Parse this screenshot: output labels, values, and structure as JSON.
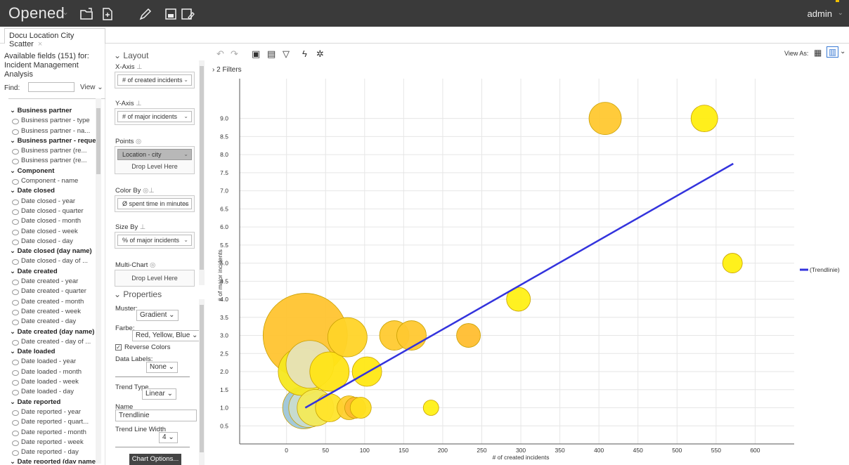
{
  "topbar": {
    "title": "Opened",
    "user": "admin",
    "icons": [
      "open-folder-icon",
      "new-report-icon",
      "edit-icon",
      "save-icon",
      "save-as-icon"
    ]
  },
  "tab": {
    "label": "Docu Location City Scatter",
    "close": "×"
  },
  "fields": {
    "header": "Available fields (151) for: Incident Management Analysis",
    "find_label": "Find:",
    "find_value": "",
    "view_label": "View ⌄",
    "items": [
      {
        "label": "⌄ Business partner",
        "type": "group"
      },
      {
        "label": "Business partner - type",
        "type": "leaf"
      },
      {
        "label": "Business partner - na...",
        "type": "leaf"
      },
      {
        "label": "⌄ Business partner - reques...",
        "type": "group"
      },
      {
        "label": "Business partner (re...",
        "type": "leaf"
      },
      {
        "label": "Business partner (re...",
        "type": "leaf"
      },
      {
        "label": "⌄ Component",
        "type": "group"
      },
      {
        "label": "Component - name",
        "type": "leaf"
      },
      {
        "label": "⌄ Date closed",
        "type": "group"
      },
      {
        "label": "Date closed - year",
        "type": "leaf"
      },
      {
        "label": "Date closed - quarter",
        "type": "leaf"
      },
      {
        "label": "Date closed - month",
        "type": "leaf"
      },
      {
        "label": "Date closed - week",
        "type": "leaf"
      },
      {
        "label": "Date closed - day",
        "type": "leaf"
      },
      {
        "label": "⌄ Date closed (day name)",
        "type": "group"
      },
      {
        "label": "Date closed - day of ...",
        "type": "leaf"
      },
      {
        "label": "⌄ Date created",
        "type": "group"
      },
      {
        "label": "Date created - year",
        "type": "leaf"
      },
      {
        "label": "Date created - quarter",
        "type": "leaf"
      },
      {
        "label": "Date created - month",
        "type": "leaf"
      },
      {
        "label": "Date created - week",
        "type": "leaf"
      },
      {
        "label": "Date created - day",
        "type": "leaf"
      },
      {
        "label": "⌄ Date created (day name)",
        "type": "group"
      },
      {
        "label": "Date created - day of ...",
        "type": "leaf"
      },
      {
        "label": "⌄ Date loaded",
        "type": "group"
      },
      {
        "label": "Date loaded - year",
        "type": "leaf"
      },
      {
        "label": "Date loaded - month",
        "type": "leaf"
      },
      {
        "label": "Date loaded - week",
        "type": "leaf"
      },
      {
        "label": "Date loaded - day",
        "type": "leaf"
      },
      {
        "label": "⌄ Date reported",
        "type": "group"
      },
      {
        "label": "Date reported - year",
        "type": "leaf"
      },
      {
        "label": "Date reported - quart...",
        "type": "leaf"
      },
      {
        "label": "Date reported - month",
        "type": "leaf"
      },
      {
        "label": "Date reported - week",
        "type": "leaf"
      },
      {
        "label": "Date reported - day",
        "type": "leaf"
      },
      {
        "label": "⌄ Date reported (day name)",
        "type": "group"
      }
    ]
  },
  "layout": {
    "title": "⌄ Layout",
    "x_axis_label": "X-Axis",
    "x_axis_value": "# of created incidents",
    "y_axis_label": "Y-Axis",
    "y_axis_value": "# of major incidents",
    "points_label": "Points",
    "points_value": "Location - city",
    "points_drop": "Drop Level Here",
    "color_by_label": "Color By",
    "color_by_value": "Ø spent time in minutes",
    "size_by_label": "Size By",
    "size_by_value": "% of major incidents",
    "multichart_label": "Multi-Chart",
    "multichart_drop": "Drop Level Here"
  },
  "properties": {
    "title": "⌄ Properties",
    "muster_label": "Muster:",
    "muster_value": "Gradient ⌄",
    "farbe_label": "Farbe:",
    "farbe_value": "Red, Yellow, Blue ⌄",
    "reverse_colors": "Reverse Colors",
    "reverse_checked": "✓",
    "data_labels_label": "Data Labels:",
    "data_labels_value": "None ⌄",
    "trend_type_label": "Trend Type",
    "trend_type_value": "Linear ⌄",
    "name_label": "Name",
    "name_value": "Trendlinie",
    "trend_width_label": "Trend Line Width",
    "trend_width_value": "4 ⌄",
    "chart_options_button": "Chart Options..."
  },
  "chart_toolbar": {
    "filters": "› 2 Filters",
    "view_as": "View As:"
  },
  "chart_data": {
    "type": "scatter",
    "xlabel": "# of created incidents",
    "ylabel": "# of major incidents",
    "xlim": [
      -60,
      650
    ],
    "ylim": [
      0,
      10.1
    ],
    "x_ticks": [
      0,
      50,
      100,
      150,
      200,
      250,
      300,
      350,
      400,
      450,
      500,
      550,
      600
    ],
    "y_ticks": [
      0.5,
      1.0,
      1.5,
      2.0,
      2.5,
      3.0,
      3.5,
      4.0,
      4.5,
      5.0,
      5.5,
      6.0,
      6.5,
      7.0,
      7.5,
      8.0,
      8.5,
      9.0
    ],
    "grid": true,
    "legend_position": "right",
    "legend": [
      "(Trendlinie)"
    ],
    "trendline": {
      "name": "(Trendlinie)",
      "color": "#3333dd",
      "x": [
        24,
        572
      ],
      "y": [
        1.0,
        7.75
      ]
    },
    "points": [
      {
        "x": 24,
        "y": 3.0,
        "size": 60,
        "color": "#ffc430"
      },
      {
        "x": 22,
        "y": 1.0,
        "size": 30,
        "color": "#9ec6d8"
      },
      {
        "x": 28,
        "y": 1.0,
        "size": 28,
        "color": "#c9dccf"
      },
      {
        "x": 20,
        "y": 2.0,
        "size": 34,
        "color": "#f5e820"
      },
      {
        "x": 30,
        "y": 2.2,
        "size": 34,
        "color": "#e6e2b8"
      },
      {
        "x": 55,
        "y": 2.0,
        "size": 28,
        "color": "#ffe416"
      },
      {
        "x": 37,
        "y": 1.0,
        "size": 26,
        "color": "#f3ea58"
      },
      {
        "x": 55,
        "y": 1.0,
        "size": 20,
        "color": "#ffe42a"
      },
      {
        "x": 78,
        "y": 2.95,
        "size": 28,
        "color": "#ffd428"
      },
      {
        "x": 80,
        "y": 1.0,
        "size": 17,
        "color": "#ffd030"
      },
      {
        "x": 88,
        "y": 1.0,
        "size": 15,
        "color": "#ffb830"
      },
      {
        "x": 95,
        "y": 1.0,
        "size": 15,
        "color": "#ffe020"
      },
      {
        "x": 103,
        "y": 2.0,
        "size": 21,
        "color": "#ffe814"
      },
      {
        "x": 138,
        "y": 3.0,
        "size": 21,
        "color": "#ffca30"
      },
      {
        "x": 160,
        "y": 3.0,
        "size": 21,
        "color": "#ffc830"
      },
      {
        "x": 185,
        "y": 1.0,
        "size": 11,
        "color": "#fff016"
      },
      {
        "x": 233,
        "y": 3.0,
        "size": 17,
        "color": "#ffbe30"
      },
      {
        "x": 297,
        "y": 4.0,
        "size": 17,
        "color": "#fff016"
      },
      {
        "x": 408,
        "y": 9.0,
        "size": 23,
        "color": "#ffc830"
      },
      {
        "x": 535,
        "y": 9.0,
        "size": 19,
        "color": "#ffee10"
      },
      {
        "x": 571,
        "y": 5.0,
        "size": 14,
        "color": "#fff010"
      }
    ]
  }
}
